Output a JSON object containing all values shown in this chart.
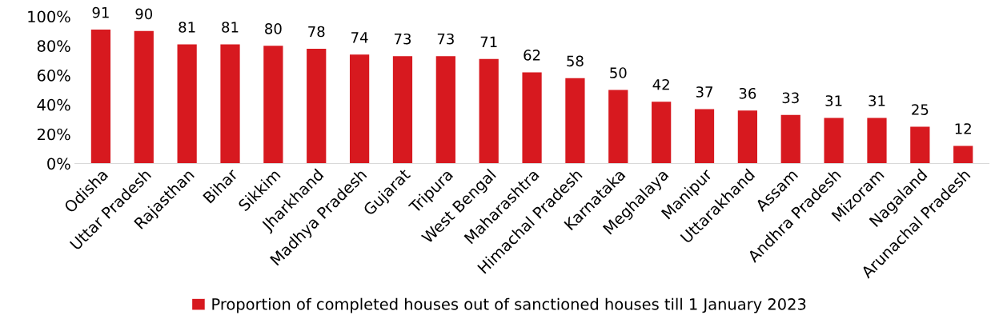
{
  "chart_data": {
    "type": "bar",
    "categories": [
      "Odisha",
      "Uttar Pradesh",
      "Rajasthan",
      "Bihar",
      "Sikkim",
      "Jharkhand",
      "Madhya Pradesh",
      "Gujarat",
      "Tripura",
      "West Bengal",
      "Maharashtra",
      "Himachal Pradesh",
      "Karnataka",
      "Meghalaya",
      "Manipur",
      "Uttarakhand",
      "Assam",
      "Andhra Pradesh",
      "Mizoram",
      "Nagaland",
      "Arunachal Pradesh"
    ],
    "series": [
      {
        "name": "Proportion of completed houses out of sanctioned houses till 1 January 2023",
        "color": "#d7191f",
        "values": [
          91,
          90,
          81,
          81,
          80,
          78,
          74,
          73,
          73,
          71,
          62,
          58,
          50,
          42,
          37,
          36,
          33,
          31,
          31,
          25,
          12
        ]
      }
    ],
    "ylim": [
      0,
      100
    ],
    "yticks": [
      {
        "value": 0,
        "label": "0%"
      },
      {
        "value": 20,
        "label": "20%"
      },
      {
        "value": 40,
        "label": "40%"
      },
      {
        "value": 60,
        "label": "60%"
      },
      {
        "value": 80,
        "label": "80%"
      },
      {
        "value": 100,
        "label": "100%"
      }
    ],
    "data_labels": true,
    "grid": false,
    "legend": "bottom"
  }
}
